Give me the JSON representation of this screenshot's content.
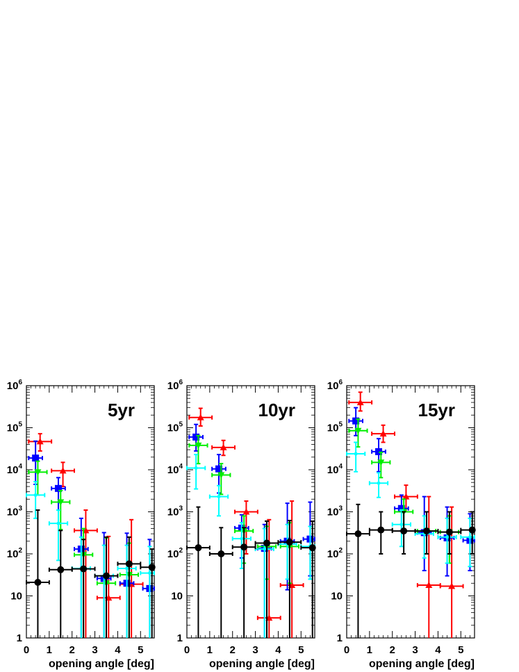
{
  "chart_data": [
    {
      "type": "scatter",
      "title": "5yr",
      "xlabel": "opening angle [deg]",
      "ylabel": "",
      "xlim": [
        0,
        5.6
      ],
      "ylim": [
        1,
        1000000
      ],
      "yscale": "log",
      "xticks": [
        "0",
        "1",
        "2",
        "3",
        "4",
        "5"
      ],
      "yticks": [
        {
          "base": "1",
          "exp": ""
        },
        {
          "base": "10",
          "exp": ""
        },
        {
          "base": "10",
          "exp": "2"
        },
        {
          "base": "10",
          "exp": "3"
        },
        {
          "base": "10",
          "exp": "4"
        },
        {
          "base": "10",
          "exp": "5"
        },
        {
          "base": "10",
          "exp": "6"
        }
      ],
      "series": [
        {
          "color": "#ff0000",
          "marker": "triangle",
          "points": [
            {
              "x": 0.6,
              "xerr": 0.5,
              "y": 47000,
              "ylo": 28000,
              "yhi": 72000
            },
            {
              "x": 1.6,
              "xerr": 0.5,
              "y": 9500,
              "ylo": 4000,
              "yhi": 15000
            },
            {
              "x": 2.6,
              "xerr": 0.5,
              "y": 360,
              "ylo": 1,
              "yhi": 1100
            },
            {
              "x": 3.6,
              "xerr": 0.5,
              "y": 9,
              "ylo": 1,
              "yhi": 260
            },
            {
              "x": 4.6,
              "xerr": 0.5,
              "y": 19,
              "ylo": 1,
              "yhi": 650
            }
          ]
        },
        {
          "color": "#0000ff",
          "marker": "square",
          "points": [
            {
              "x": 0.4,
              "xerr": 0.3,
              "y": 19000,
              "ylo": 4500,
              "yhi": 48000
            },
            {
              "x": 1.4,
              "xerr": 0.3,
              "y": 3600,
              "ylo": 1100,
              "yhi": 6500
            },
            {
              "x": 2.4,
              "xerr": 0.3,
              "y": 130,
              "ylo": 1,
              "yhi": 700
            },
            {
              "x": 3.4,
              "xerr": 0.3,
              "y": 26,
              "ylo": 1,
              "yhi": 320
            },
            {
              "x": 4.4,
              "xerr": 0.3,
              "y": 20,
              "ylo": 1,
              "yhi": 310
            },
            {
              "x": 5.4,
              "xerr": 0.3,
              "y": 15,
              "ylo": 1,
              "yhi": 220
            }
          ]
        },
        {
          "color": "#00ee00",
          "marker": "inverted-triangle",
          "points": [
            {
              "x": 0.5,
              "xerr": 0.4,
              "y": 8800,
              "ylo": 2500,
              "yhi": 16000
            },
            {
              "x": 1.5,
              "xerr": 0.4,
              "y": 1700,
              "ylo": 380,
              "yhi": 3200
            },
            {
              "x": 2.5,
              "xerr": 0.4,
              "y": 95,
              "ylo": 1,
              "yhi": 400
            },
            {
              "x": 3.5,
              "xerr": 0.4,
              "y": 20,
              "ylo": 1,
              "yhi": 240
            },
            {
              "x": 4.5,
              "xerr": 0.4,
              "y": 32,
              "ylo": 1,
              "yhi": 180
            }
          ]
        },
        {
          "color": "#00ffff",
          "marker": "cross",
          "points": [
            {
              "x": 0.4,
              "xerr": 0.4,
              "y": 2500,
              "ylo": 700,
              "yhi": 5200
            },
            {
              "x": 1.4,
              "xerr": 0.4,
              "y": 530,
              "ylo": 70,
              "yhi": 1100
            },
            {
              "x": 2.4,
              "xerr": 0.4,
              "y": 45,
              "ylo": 1,
              "yhi": 250
            },
            {
              "x": 3.4,
              "xerr": 0.4,
              "y": 30,
              "ylo": 1,
              "yhi": 160
            },
            {
              "x": 4.4,
              "xerr": 0.4,
              "y": 45,
              "ylo": 1,
              "yhi": 160
            },
            {
              "x": 5.4,
              "xerr": 0.4,
              "y": 35,
              "ylo": 1,
              "yhi": 150
            }
          ]
        },
        {
          "color": "#000000",
          "marker": "circle",
          "points": [
            {
              "x": 0.5,
              "xerr": 0.5,
              "y": 21,
              "ylo": 1,
              "yhi": 1100
            },
            {
              "x": 1.5,
              "xerr": 0.5,
              "y": 42,
              "ylo": 1,
              "yhi": 360
            },
            {
              "x": 2.5,
              "xerr": 0.5,
              "y": 44,
              "ylo": 1,
              "yhi": 220
            },
            {
              "x": 3.5,
              "xerr": 0.5,
              "y": 30,
              "ylo": 1,
              "yhi": 250
            },
            {
              "x": 4.5,
              "xerr": 0.5,
              "y": 58,
              "ylo": 1,
              "yhi": 250
            },
            {
              "x": 5.5,
              "xerr": 0.5,
              "y": 48,
              "ylo": 1,
              "yhi": 130
            }
          ]
        }
      ]
    },
    {
      "type": "scatter",
      "title": "10yr",
      "xlabel": "opening angle [deg]",
      "ylabel": "",
      "xlim": [
        0,
        5.6
      ],
      "ylim": [
        1,
        1000000
      ],
      "yscale": "log",
      "xticks": [
        "0",
        "1",
        "2",
        "3",
        "4",
        "5"
      ],
      "yticks": [
        {
          "base": "1",
          "exp": ""
        },
        {
          "base": "10",
          "exp": ""
        },
        {
          "base": "10",
          "exp": "2"
        },
        {
          "base": "10",
          "exp": "3"
        },
        {
          "base": "10",
          "exp": "4"
        },
        {
          "base": "10",
          "exp": "5"
        },
        {
          "base": "10",
          "exp": "6"
        }
      ],
      "series": [
        {
          "color": "#ff0000",
          "marker": "triangle",
          "points": [
            {
              "x": 0.6,
              "xerr": 0.5,
              "y": 175000,
              "ylo": 110000,
              "yhi": 290000
            },
            {
              "x": 1.6,
              "xerr": 0.5,
              "y": 34000,
              "ylo": 22000,
              "yhi": 50000
            },
            {
              "x": 2.6,
              "xerr": 0.5,
              "y": 1000,
              "ylo": 100,
              "yhi": 1800
            },
            {
              "x": 3.6,
              "xerr": 0.5,
              "y": 3,
              "ylo": 1,
              "yhi": 650
            },
            {
              "x": 4.6,
              "xerr": 0.5,
              "y": 18,
              "ylo": 1,
              "yhi": 1800
            }
          ]
        },
        {
          "color": "#0000ff",
          "marker": "square",
          "points": [
            {
              "x": 0.4,
              "xerr": 0.3,
              "y": 60000,
              "ylo": 28000,
              "yhi": 120000
            },
            {
              "x": 1.4,
              "xerr": 0.3,
              "y": 10500,
              "ylo": 2800,
              "yhi": 23000
            },
            {
              "x": 2.4,
              "xerr": 0.3,
              "y": 410,
              "ylo": 80,
              "yhi": 850
            },
            {
              "x": 3.4,
              "xerr": 0.3,
              "y": 135,
              "ylo": 1,
              "yhi": 500
            },
            {
              "x": 4.4,
              "xerr": 0.3,
              "y": 200,
              "ylo": 14,
              "yhi": 1600
            },
            {
              "x": 5.4,
              "xerr": 0.3,
              "y": 225,
              "ylo": 30,
              "yhi": 1700
            }
          ]
        },
        {
          "color": "#00ee00",
          "marker": "inverted-triangle",
          "points": [
            {
              "x": 0.5,
              "xerr": 0.4,
              "y": 38000,
              "ylo": 14000,
              "yhi": 65000
            },
            {
              "x": 1.5,
              "xerr": 0.4,
              "y": 7500,
              "ylo": 2600,
              "yhi": 14000
            },
            {
              "x": 2.5,
              "xerr": 0.4,
              "y": 350,
              "ylo": 60,
              "yhi": 800
            },
            {
              "x": 3.5,
              "xerr": 0.4,
              "y": 150,
              "ylo": 25,
              "yhi": 450
            },
            {
              "x": 4.5,
              "xerr": 0.4,
              "y": 150,
              "ylo": 20,
              "yhi": 550
            }
          ]
        },
        {
          "color": "#00ffff",
          "marker": "cross",
          "points": [
            {
              "x": 0.4,
              "xerr": 0.4,
              "y": 11000,
              "ylo": 3500,
              "yhi": 23000
            },
            {
              "x": 1.4,
              "xerr": 0.4,
              "y": 2300,
              "ylo": 800,
              "yhi": 4200
            },
            {
              "x": 2.4,
              "xerr": 0.4,
              "y": 230,
              "ylo": 45,
              "yhi": 550
            },
            {
              "x": 3.4,
              "xerr": 0.4,
              "y": 130,
              "ylo": 1,
              "yhi": 400
            },
            {
              "x": 4.4,
              "xerr": 0.4,
              "y": 170,
              "ylo": 25,
              "yhi": 500
            },
            {
              "x": 5.4,
              "xerr": 0.4,
              "y": 150,
              "ylo": 25,
              "yhi": 450
            }
          ]
        },
        {
          "color": "#000000",
          "marker": "circle",
          "points": [
            {
              "x": 0.5,
              "xerr": 0.5,
              "y": 140,
              "ylo": 1,
              "yhi": 1300
            },
            {
              "x": 1.5,
              "xerr": 0.5,
              "y": 100,
              "ylo": 1,
              "yhi": 420
            },
            {
              "x": 2.5,
              "xerr": 0.5,
              "y": 145,
              "ylo": 1,
              "yhi": 420
            },
            {
              "x": 3.5,
              "xerr": 0.5,
              "y": 180,
              "ylo": 1,
              "yhi": 600
            },
            {
              "x": 4.5,
              "xerr": 0.5,
              "y": 190,
              "ylo": 1,
              "yhi": 620
            },
            {
              "x": 5.5,
              "xerr": 0.5,
              "y": 140,
              "ylo": 1,
              "yhi": 600
            }
          ]
        }
      ]
    },
    {
      "type": "scatter",
      "title": "15yr",
      "xlabel": "opening angle [deg]",
      "ylabel": "",
      "xlim": [
        0,
        5.6
      ],
      "ylim": [
        1,
        1000000
      ],
      "yscale": "log",
      "xticks": [
        "0",
        "1",
        "2",
        "3",
        "4",
        "5"
      ],
      "yticks": [
        {
          "base": "1",
          "exp": ""
        },
        {
          "base": "10",
          "exp": ""
        },
        {
          "base": "10",
          "exp": "2"
        },
        {
          "base": "10",
          "exp": "3"
        },
        {
          "base": "10",
          "exp": "4"
        },
        {
          "base": "10",
          "exp": "5"
        },
        {
          "base": "10",
          "exp": "6"
        }
      ],
      "series": [
        {
          "color": "#ff0000",
          "marker": "triangle",
          "points": [
            {
              "x": 0.6,
              "xerr": 0.5,
              "y": 400000,
              "ylo": 250000,
              "yhi": 700000
            },
            {
              "x": 1.6,
              "xerr": 0.5,
              "y": 72000,
              "ylo": 45000,
              "yhi": 115000
            },
            {
              "x": 2.6,
              "xerr": 0.5,
              "y": 2300,
              "ylo": 1000,
              "yhi": 4300
            },
            {
              "x": 3.6,
              "xerr": 0.5,
              "y": 18,
              "ylo": 1,
              "yhi": 2300
            },
            {
              "x": 4.6,
              "xerr": 0.5,
              "y": 17,
              "ylo": 1,
              "yhi": 1300
            }
          ]
        },
        {
          "color": "#0000ff",
          "marker": "square",
          "points": [
            {
              "x": 0.4,
              "xerr": 0.3,
              "y": 145000,
              "ylo": 65000,
              "yhi": 300000
            },
            {
              "x": 1.4,
              "xerr": 0.3,
              "y": 27000,
              "ylo": 9000,
              "yhi": 55000
            },
            {
              "x": 2.4,
              "xerr": 0.3,
              "y": 1200,
              "ylo": 350,
              "yhi": 2500
            },
            {
              "x": 3.4,
              "xerr": 0.3,
              "y": 320,
              "ylo": 40,
              "yhi": 2300
            },
            {
              "x": 4.4,
              "xerr": 0.3,
              "y": 240,
              "ylo": 30,
              "yhi": 1300
            },
            {
              "x": 5.4,
              "xerr": 0.3,
              "y": 210,
              "ylo": 40,
              "yhi": 900
            }
          ]
        },
        {
          "color": "#00ee00",
          "marker": "inverted-triangle",
          "points": [
            {
              "x": 0.5,
              "xerr": 0.4,
              "y": 85000,
              "ylo": 35000,
              "yhi": 160000
            },
            {
              "x": 1.5,
              "xerr": 0.4,
              "y": 15000,
              "ylo": 6500,
              "yhi": 26000
            },
            {
              "x": 2.5,
              "xerr": 0.4,
              "y": 1000,
              "ylo": 350,
              "yhi": 2000
            },
            {
              "x": 3.5,
              "xerr": 0.4,
              "y": 350,
              "ylo": 100,
              "yhi": 1000
            },
            {
              "x": 4.5,
              "xerr": 0.4,
              "y": 330,
              "ylo": 60,
              "yhi": 800
            }
          ]
        },
        {
          "color": "#00ffff",
          "marker": "cross",
          "points": [
            {
              "x": 0.4,
              "xerr": 0.4,
              "y": 24000,
              "ylo": 9000,
              "yhi": 45000
            },
            {
              "x": 1.4,
              "xerr": 0.4,
              "y": 4800,
              "ylo": 2200,
              "yhi": 8500
            },
            {
              "x": 2.4,
              "xerr": 0.4,
              "y": 500,
              "ylo": 150,
              "yhi": 1100
            },
            {
              "x": 3.4,
              "xerr": 0.4,
              "y": 300,
              "ylo": 80,
              "yhi": 800
            },
            {
              "x": 4.4,
              "xerr": 0.4,
              "y": 250,
              "ylo": 60,
              "yhi": 700
            },
            {
              "x": 5.4,
              "xerr": 0.4,
              "y": 250,
              "ylo": 50,
              "yhi": 700
            }
          ]
        },
        {
          "color": "#000000",
          "marker": "circle",
          "points": [
            {
              "x": 0.5,
              "xerr": 0.5,
              "y": 300,
              "ylo": 1,
              "yhi": 1500
            },
            {
              "x": 1.5,
              "xerr": 0.5,
              "y": 370,
              "ylo": 100,
              "yhi": 1000
            },
            {
              "x": 2.5,
              "xerr": 0.5,
              "y": 350,
              "ylo": 100,
              "yhi": 1000
            },
            {
              "x": 3.5,
              "xerr": 0.5,
              "y": 350,
              "ylo": 100,
              "yhi": 1000
            },
            {
              "x": 4.5,
              "xerr": 0.5,
              "y": 330,
              "ylo": 100,
              "yhi": 1000
            },
            {
              "x": 5.5,
              "xerr": 0.5,
              "y": 370,
              "ylo": 100,
              "yhi": 1000
            }
          ]
        }
      ]
    }
  ]
}
